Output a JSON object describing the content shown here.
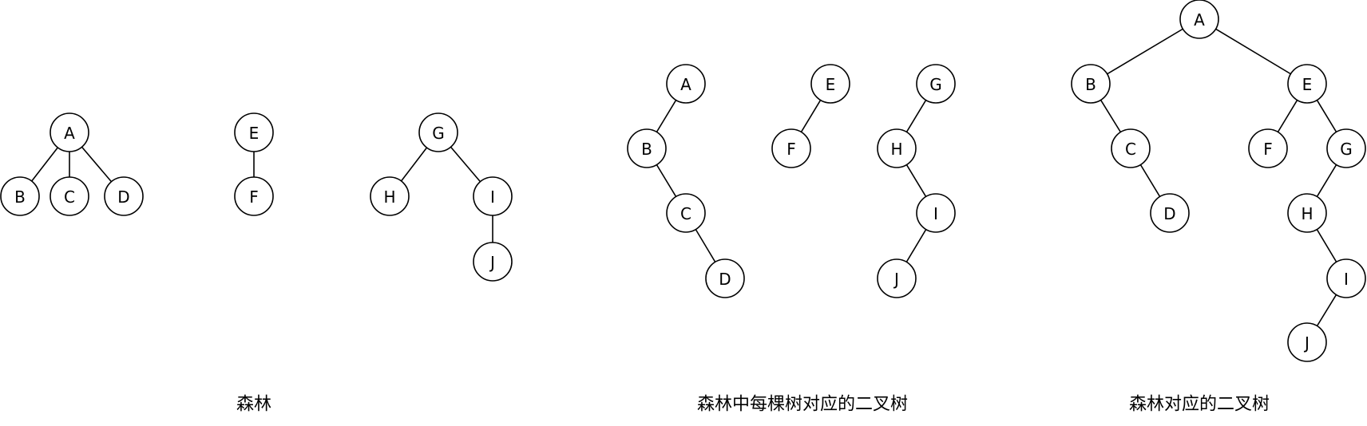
{
  "panels": [
    {
      "caption": "森林",
      "trees": [
        {
          "nodes": [
            "A",
            "B",
            "C",
            "D"
          ],
          "edges": [
            [
              "A",
              "B"
            ],
            [
              "A",
              "C"
            ],
            [
              "A",
              "D"
            ]
          ]
        },
        {
          "nodes": [
            "E",
            "F"
          ],
          "edges": [
            [
              "E",
              "F"
            ]
          ]
        },
        {
          "nodes": [
            "G",
            "H",
            "I",
            "J"
          ],
          "edges": [
            [
              "G",
              "H"
            ],
            [
              "G",
              "I"
            ],
            [
              "I",
              "J"
            ]
          ]
        }
      ]
    },
    {
      "caption": "森林中每棵树对应的二叉树",
      "trees": [
        {
          "nodes": [
            "A",
            "B",
            "C",
            "D"
          ],
          "edges": [
            [
              "A",
              "B"
            ],
            [
              "B",
              "C"
            ],
            [
              "C",
              "D"
            ]
          ]
        },
        {
          "nodes": [
            "E",
            "F"
          ],
          "edges": [
            [
              "E",
              "F"
            ]
          ]
        },
        {
          "nodes": [
            "G",
            "H",
            "I",
            "J"
          ],
          "edges": [
            [
              "G",
              "H"
            ],
            [
              "H",
              "I"
            ],
            [
              "I",
              "J"
            ]
          ]
        }
      ]
    },
    {
      "caption": "森林对应的二叉树",
      "trees": [
        {
          "nodes": [
            "A",
            "B",
            "C",
            "D",
            "E",
            "F",
            "G",
            "H",
            "I",
            "J"
          ],
          "edges": [
            [
              "A",
              "B"
            ],
            [
              "A",
              "E"
            ],
            [
              "B",
              "C"
            ],
            [
              "C",
              "D"
            ],
            [
              "E",
              "F"
            ],
            [
              "E",
              "G"
            ],
            [
              "G",
              "H"
            ],
            [
              "H",
              "I"
            ],
            [
              "I",
              "J"
            ]
          ]
        }
      ]
    }
  ]
}
